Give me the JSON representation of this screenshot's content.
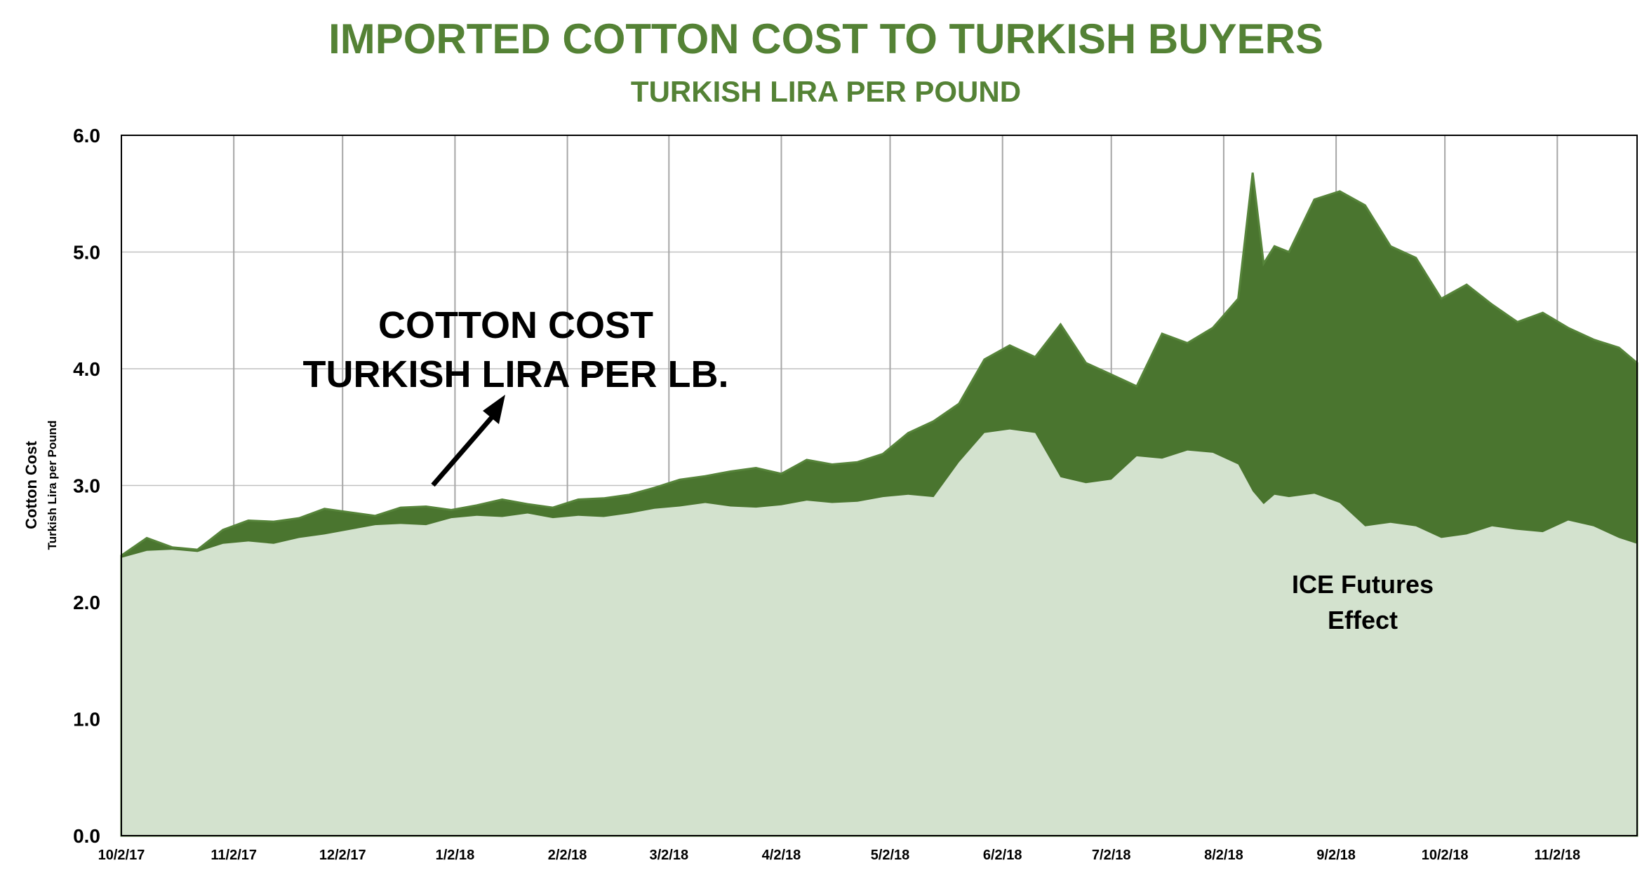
{
  "chart_data": {
    "type": "area",
    "title": "IMPORTED COTTON COST TO TURKISH BUYERS",
    "subtitle": "TURKISH LIRA PER POUND",
    "ylabel": "Cotton Cost",
    "ylabel_sub": "Turkish Lira per Pound",
    "ylim": [
      0,
      6
    ],
    "y_ticks": [
      "0.0",
      "1.0",
      "2.0",
      "3.0",
      "4.0",
      "5.0",
      "6.0"
    ],
    "x_ticks": [
      "10/2/17",
      "11/2/17",
      "12/2/17",
      "1/2/18",
      "2/2/18",
      "3/2/18",
      "4/2/18",
      "5/2/18",
      "6/2/18",
      "7/2/18",
      "8/2/18",
      "9/2/18",
      "10/2/18",
      "11/2/18"
    ],
    "x_range": [
      "10/2/17",
      "11/24/18"
    ],
    "grid": true,
    "annotations": [
      {
        "text_lines": [
          "COTTON COST",
          "TURKISH LIRA PER LB."
        ],
        "arrow": true
      },
      {
        "text_lines": [
          "ICE Futures",
          "Effect"
        ]
      }
    ],
    "colors": {
      "title": "#548235",
      "cotton_cost": "#4a752f",
      "ice_futures": "#d3e2ce"
    },
    "x": [
      "10/2/17",
      "10/9/17",
      "10/16/17",
      "10/23/17",
      "10/30/17",
      "11/6/17",
      "11/13/17",
      "11/20/17",
      "11/27/17",
      "12/4/17",
      "12/11/17",
      "12/18/17",
      "12/25/17",
      "1/1/18",
      "1/8/18",
      "1/15/18",
      "1/22/18",
      "1/29/18",
      "2/5/18",
      "2/12/18",
      "2/19/18",
      "2/26/18",
      "3/5/18",
      "3/12/18",
      "3/19/18",
      "3/26/18",
      "4/2/18",
      "4/9/18",
      "4/16/18",
      "4/23/18",
      "4/30/18",
      "5/7/18",
      "5/14/18",
      "5/21/18",
      "5/28/18",
      "6/4/18",
      "6/11/18",
      "6/18/18",
      "6/25/18",
      "7/2/18",
      "7/9/18",
      "7/16/18",
      "7/23/18",
      "7/30/18",
      "8/6/18",
      "8/10/18",
      "8/13/18",
      "8/16/18",
      "8/20/18",
      "8/27/18",
      "9/3/18",
      "9/10/18",
      "9/17/18",
      "9/24/18",
      "10/1/18",
      "10/8/18",
      "10/15/18",
      "10/22/18",
      "10/29/18",
      "11/5/18",
      "11/12/18",
      "11/19/18",
      "11/24/18"
    ],
    "series": [
      {
        "name": "COTTON COST TURKISH LIRA PER LB.",
        "values": [
          2.4,
          2.55,
          2.47,
          2.45,
          2.62,
          2.7,
          2.69,
          2.72,
          2.8,
          2.77,
          2.74,
          2.81,
          2.82,
          2.79,
          2.83,
          2.88,
          2.84,
          2.81,
          2.88,
          2.89,
          2.92,
          2.98,
          3.05,
          3.08,
          3.12,
          3.15,
          3.1,
          3.22,
          3.18,
          3.2,
          3.27,
          3.45,
          3.55,
          3.7,
          4.08,
          4.2,
          4.1,
          4.38,
          4.05,
          3.95,
          3.85,
          4.3,
          4.22,
          4.35,
          4.6,
          5.68,
          4.9,
          5.05,
          5.0,
          5.45,
          5.52,
          5.4,
          5.05,
          4.95,
          4.6,
          4.72,
          4.55,
          4.4,
          4.48,
          4.35,
          4.25,
          4.18,
          4.05
        ]
      },
      {
        "name": "ICE Futures Effect",
        "values": [
          2.38,
          2.44,
          2.45,
          2.43,
          2.5,
          2.52,
          2.5,
          2.55,
          2.58,
          2.62,
          2.66,
          2.67,
          2.66,
          2.72,
          2.74,
          2.73,
          2.76,
          2.72,
          2.74,
          2.73,
          2.76,
          2.8,
          2.82,
          2.85,
          2.82,
          2.81,
          2.83,
          2.87,
          2.85,
          2.86,
          2.9,
          2.92,
          2.9,
          3.2,
          3.45,
          3.48,
          3.45,
          3.07,
          3.02,
          3.05,
          3.25,
          3.23,
          3.3,
          3.28,
          3.18,
          2.95,
          2.84,
          2.92,
          2.9,
          2.93,
          2.85,
          2.65,
          2.68,
          2.65,
          2.55,
          2.58,
          2.65,
          2.62,
          2.6,
          2.7,
          2.65,
          2.55,
          2.5
        ]
      }
    ]
  }
}
